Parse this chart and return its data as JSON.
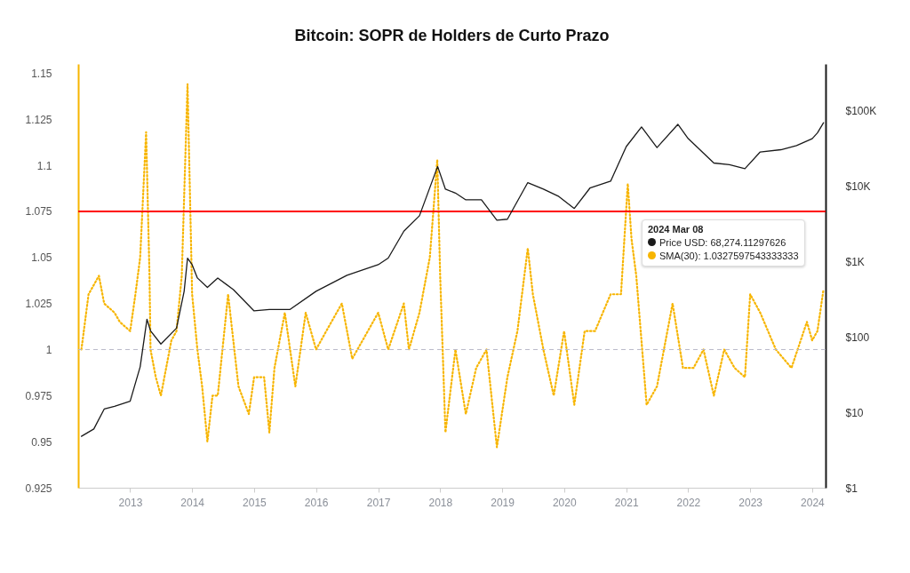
{
  "chart_data": {
    "type": "line",
    "title": "Bitcoin: SOPR de Holders de Curto Prazo",
    "annotations": [
      "2024 Mar 08",
      "Price USD: 68,274.11297626",
      "SMA(30): 1.0327597543333333"
    ],
    "xlim": [
      "2012-03-01",
      "2024-03-20"
    ],
    "xticks": [
      "2013",
      "2014",
      "2015",
      "2016",
      "2017",
      "2018",
      "2019",
      "2020",
      "2021",
      "2022",
      "2023",
      "2024"
    ],
    "ylim": [
      0.925,
      1.155
    ],
    "yticks": [
      0.925,
      0.95,
      0.975,
      1,
      1.025,
      1.05,
      1.075,
      1.1,
      1.125,
      1.15
    ],
    "y2lim": [
      1,
      410000
    ],
    "y2ticks": [
      {
        "value": 1,
        "label": "$1"
      },
      {
        "value": 10,
        "label": "$10"
      },
      {
        "value": 100,
        "label": "$100"
      },
      {
        "value": 1000,
        "label": "$1K"
      },
      {
        "value": 10000,
        "label": "$10K"
      },
      {
        "value": 100000,
        "label": "$100K"
      }
    ],
    "log": "y2",
    "grid": false,
    "marker": "none",
    "ref_lines": [
      {
        "axis": "y",
        "value": 1.075,
        "color": "#ff0000",
        "line_style": "solid"
      },
      {
        "axis": "y",
        "value": 1,
        "color": "#b8b8c8",
        "line_style": "dashed"
      }
    ],
    "series": [
      {
        "color": "#f7b500",
        "line_style": "dotted",
        "x": [
          "2012-03-20",
          "2012-05",
          "2012-07",
          "2012-08",
          "2012-10",
          "2012-11",
          "2013-01",
          "2013-02",
          "2013-03",
          "2013-04-05",
          "2013-04-25",
          "2013-05",
          "2013-06",
          "2013-07",
          "2013-09",
          "2013-10",
          "2013-11",
          "2013-12-05",
          "2013-12-25",
          "2014-01",
          "2014-02",
          "2014-03",
          "2014-04",
          "2014-05",
          "2014-06",
          "2014-08",
          "2014-10",
          "2014-12",
          "2015-01",
          "2015-03",
          "2015-04",
          "2015-05",
          "2015-07",
          "2015-09",
          "2015-11",
          "2016-01",
          "2016-03",
          "2016-06",
          "2016-08",
          "2016-11",
          "2017-01",
          "2017-03",
          "2017-06",
          "2017-07",
          "2017-09",
          "2017-11",
          "2017-12-15",
          "2018-01",
          "2018-02",
          "2018-04",
          "2018-06",
          "2018-08",
          "2018-10",
          "2018-12",
          "2019-02",
          "2019-04",
          "2019-06",
          "2019-07",
          "2019-09",
          "2019-11",
          "2020-01",
          "2020-03",
          "2020-05",
          "2020-07",
          "2020-10",
          "2020-12",
          "2021-01-10",
          "2021-02",
          "2021-03",
          "2021-05",
          "2021-07",
          "2021-10",
          "2021-12",
          "2022-02",
          "2022-04",
          "2022-06",
          "2022-08",
          "2022-10",
          "2022-12",
          "2023-01",
          "2023-03",
          "2023-06",
          "2023-09",
          "2023-12",
          "2024-01",
          "2024-02",
          "2024-03-08"
        ],
        "values": [
          1.0,
          1.03,
          1.04,
          1.025,
          1.02,
          1.015,
          1.01,
          1.03,
          1.05,
          1.118,
          1.04,
          1.0,
          0.985,
          0.975,
          1.005,
          1.01,
          1.04,
          1.144,
          1.06,
          1.03,
          1.0,
          0.98,
          0.95,
          0.975,
          0.975,
          1.03,
          0.98,
          0.965,
          0.985,
          0.985,
          0.955,
          0.99,
          1.02,
          0.98,
          1.02,
          1.0,
          1.01,
          1.025,
          0.995,
          1.01,
          1.02,
          1.0,
          1.025,
          1.0,
          1.02,
          1.05,
          1.103,
          1.04,
          0.955,
          1.0,
          0.965,
          0.99,
          1.0,
          0.947,
          0.985,
          1.01,
          1.055,
          1.03,
          1.0,
          0.975,
          1.01,
          0.97,
          1.01,
          1.01,
          1.03,
          1.03,
          1.09,
          1.06,
          1.04,
          0.97,
          0.98,
          1.025,
          0.99,
          0.99,
          1.0,
          0.975,
          1.0,
          0.99,
          0.985,
          1.03,
          1.02,
          1.0,
          0.99,
          1.015,
          1.005,
          1.01,
          1.0328
        ]
      },
      {
        "axis": "y2",
        "color": "#1a1a1a",
        "line_style": "solid",
        "x": [
          "2012-03-20",
          "2012-06",
          "2012-08",
          "2012-10",
          "2013-01",
          "2013-03",
          "2013-04-10",
          "2013-05",
          "2013-07",
          "2013-10",
          "2013-11-15",
          "2013-12-05",
          "2014-01",
          "2014-02",
          "2014-04",
          "2014-06",
          "2014-09",
          "2015-01",
          "2015-04",
          "2015-08",
          "2016-01",
          "2016-07",
          "2017-01",
          "2017-03",
          "2017-06",
          "2017-09",
          "2017-12-17",
          "2018-02",
          "2018-04",
          "2018-06",
          "2018-09",
          "2018-12",
          "2019-02",
          "2019-06",
          "2019-09",
          "2019-12",
          "2020-03",
          "2020-06",
          "2020-10",
          "2021-01",
          "2021-04",
          "2021-07",
          "2021-11",
          "2022-01",
          "2022-06",
          "2022-09",
          "2022-12",
          "2023-03",
          "2023-07",
          "2023-10",
          "2024-01",
          "2024-02",
          "2024-03-08"
        ],
        "values": [
          4.8,
          6,
          11,
          12,
          14,
          40,
          170,
          120,
          80,
          130,
          400,
          1100,
          900,
          600,
          450,
          600,
          420,
          220,
          230,
          230,
          400,
          650,
          900,
          1100,
          2500,
          4000,
          18000,
          9000,
          8000,
          6500,
          6500,
          3500,
          3600,
          11000,
          9000,
          7200,
          5000,
          9300,
          11500,
          33000,
          60000,
          32000,
          65000,
          42000,
          20000,
          19000,
          16800,
          28000,
          30000,
          34000,
          42000,
          50000,
          68274.11297626
        ]
      }
    ]
  }
}
